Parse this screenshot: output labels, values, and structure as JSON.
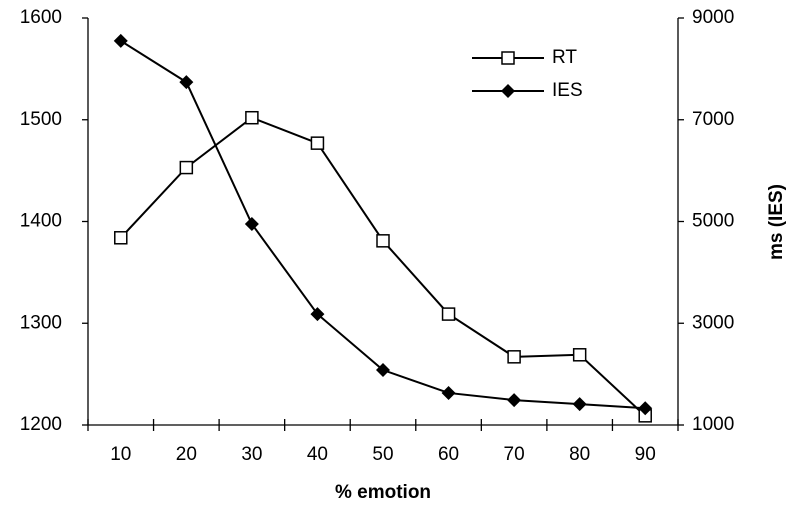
{
  "chart_data": {
    "type": "line",
    "xlabel": "% emotion",
    "y2label": "ms (IES)",
    "categories": [
      "10",
      "20",
      "30",
      "40",
      "50",
      "60",
      "70",
      "80",
      "90"
    ],
    "series": [
      {
        "name": "RT",
        "color": "#000000",
        "marker": "square",
        "values": [
          1384,
          1453,
          1502,
          1477,
          1381,
          1309,
          1267,
          1269,
          1209
        ]
      },
      {
        "name": "IES",
        "color": "#000000",
        "marker": "diamond",
        "axis": "y2",
        "values": [
          8550,
          7740,
          4950,
          3180,
          2080,
          1630,
          1490,
          1410,
          1330
        ]
      }
    ],
    "ylim": [
      1200,
      1600
    ],
    "yticks": [
      1200,
      1300,
      1400,
      1500,
      1600
    ],
    "y2lim": [
      1000,
      9000
    ],
    "y2ticks": [
      1000,
      3000,
      5000,
      7000,
      9000
    ],
    "legend": "upper right",
    "grid": false
  }
}
